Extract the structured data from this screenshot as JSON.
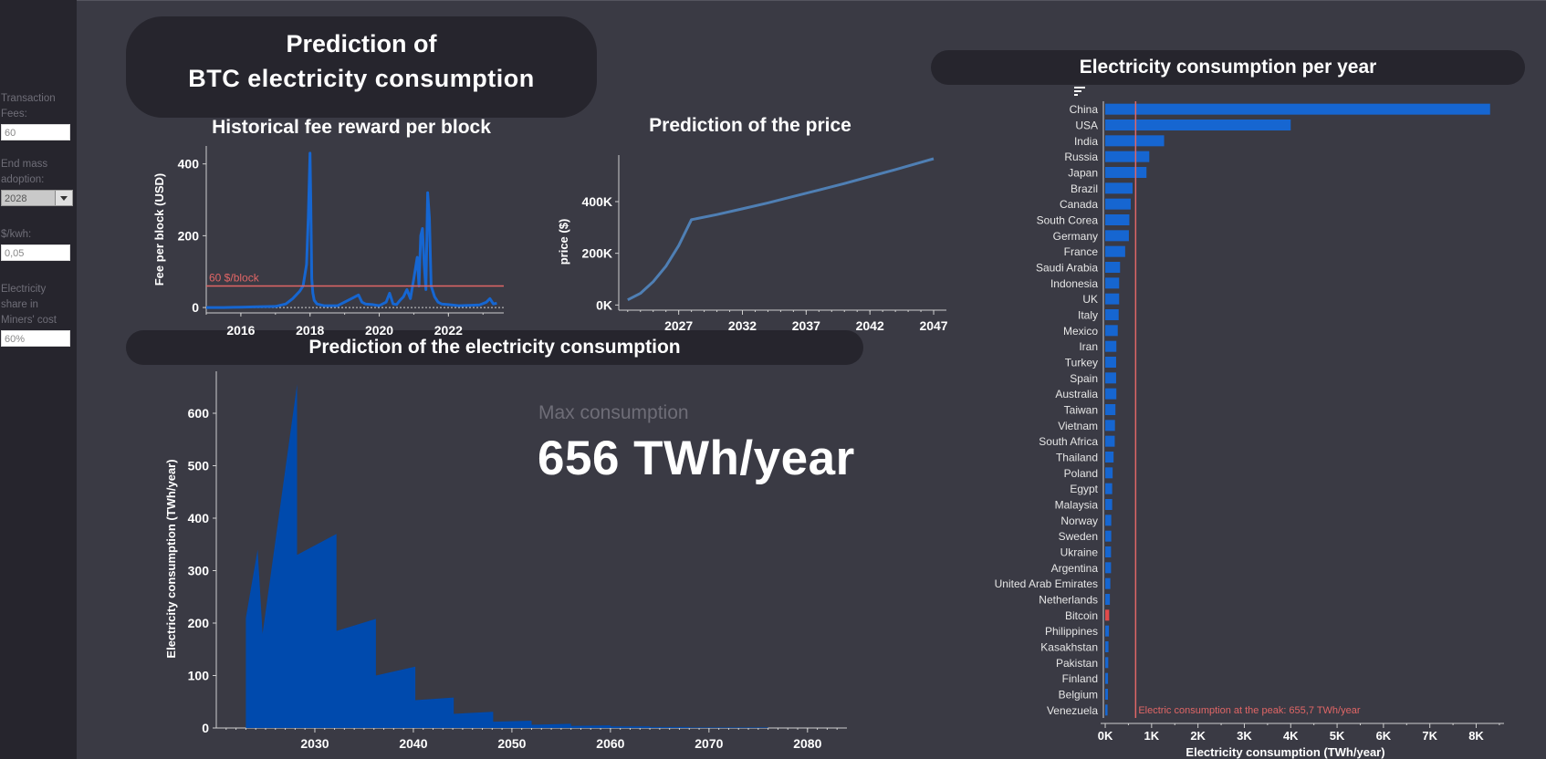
{
  "sidebar": {
    "params": [
      {
        "label": "Transaction Fees:",
        "value": "60",
        "type": "input"
      },
      {
        "label": "End mass adoption:",
        "value": "2028",
        "type": "select"
      },
      {
        "label": "$/kwh:",
        "value": "0,05",
        "type": "input"
      },
      {
        "label": "Electricity share in Miners' cost",
        "value": "60%",
        "type": "input"
      }
    ]
  },
  "title": {
    "line1": "Prediction of",
    "line2": "BTC electricity consumption"
  },
  "headers": {
    "consumption": "Prediction of the electricity consumption",
    "per_year": "Electricity consumption per year"
  },
  "kpi": {
    "label": "Max consumption",
    "value": "656 TWh/year"
  },
  "colors": {
    "background": "#3a3a44",
    "panel": "#26252d",
    "bar_blue": "#1666d1",
    "area_blue": "#004aad",
    "price_line": "#4f7fb4",
    "highlight_red": "#e04b4b",
    "ref_line": "#e06666"
  },
  "chart_data": [
    {
      "id": "fee",
      "type": "line",
      "title": "Historical fee reward per block",
      "ylabel": "Fee per block (USD)",
      "xlabel": "",
      "xlim": [
        2015.0,
        2023.6
      ],
      "ylim": [
        -15,
        450
      ],
      "xticks": [
        2016,
        2018,
        2020,
        2022
      ],
      "yticks": [
        0,
        200,
        400
      ],
      "reference_line": {
        "value": 60,
        "label": "60 $/block"
      },
      "series": [
        {
          "x": [
            2015.0,
            2015.5,
            2016.0,
            2016.5,
            2017.0,
            2017.3,
            2017.5,
            2017.7,
            2017.8,
            2017.9,
            2017.95,
            2018.0,
            2018.02,
            2018.05,
            2018.08,
            2018.12,
            2018.2,
            2018.4,
            2018.8,
            2019.2,
            2019.4,
            2019.5,
            2019.6,
            2019.8,
            2020.0,
            2020.2,
            2020.3,
            2020.4,
            2020.5,
            2020.6,
            2020.7,
            2020.8,
            2020.9,
            2021.0,
            2021.1,
            2021.15,
            2021.2,
            2021.25,
            2021.3,
            2021.35,
            2021.4,
            2021.45,
            2021.5,
            2021.6,
            2021.7,
            2021.8,
            2022.0,
            2022.3,
            2022.6,
            2022.9,
            2023.1,
            2023.2,
            2023.3,
            2023.4
          ],
          "y": [
            0,
            0,
            1,
            2,
            3,
            10,
            25,
            45,
            60,
            120,
            250,
            430,
            300,
            80,
            40,
            20,
            10,
            5,
            5,
            25,
            35,
            15,
            10,
            8,
            5,
            15,
            40,
            10,
            8,
            20,
            30,
            50,
            25,
            80,
            140,
            60,
            200,
            220,
            120,
            50,
            320,
            250,
            60,
            30,
            15,
            10,
            8,
            5,
            6,
            7,
            15,
            25,
            10,
            12
          ]
        }
      ]
    },
    {
      "id": "price",
      "type": "line",
      "title": "Prediction of the price",
      "ylabel": "price ($)",
      "xlabel": "",
      "xlim": [
        2022.3,
        2048.0
      ],
      "ylim": [
        -20000,
        580000
      ],
      "xticks": [
        2027,
        2032,
        2037,
        2042,
        2047
      ],
      "yticks": [
        0,
        200000,
        400000
      ],
      "ytick_labels": [
        "0K",
        "200K",
        "400K"
      ],
      "series": [
        {
          "x": [
            2023.0,
            2024.0,
            2025.0,
            2026.0,
            2027.0,
            2028.0,
            2030.0,
            2032.0,
            2034.0,
            2036.0,
            2038.0,
            2040.0,
            2042.0,
            2044.0,
            2046.0,
            2047.0
          ],
          "y": [
            20000,
            45000,
            90000,
            150000,
            230000,
            330000,
            350000,
            372000,
            395000,
            420000,
            445000,
            470000,
            497000,
            524000,
            552000,
            566000
          ]
        }
      ]
    },
    {
      "id": "consumption",
      "type": "area",
      "title": "",
      "ylabel": "Electricity consumption (TWh/year)",
      "xlabel": "",
      "xlim": [
        2020.0,
        2084.0
      ],
      "ylim": [
        0,
        680
      ],
      "xticks": [
        2030,
        2040,
        2050,
        2060,
        2070,
        2080
      ],
      "yticks": [
        0,
        100,
        200,
        300,
        400,
        500,
        600
      ],
      "series": [
        {
          "x": [
            2023.0,
            2023.0,
            2024.2,
            2024.7,
            2028.2,
            2028.2,
            2032.2,
            2032.2,
            2036.2,
            2036.2,
            2040.2,
            2040.2,
            2044.1,
            2044.1,
            2048.1,
            2048.1,
            2052.0,
            2052.0,
            2056.0,
            2056.0,
            2060.0,
            2060.0,
            2064.0,
            2064.0,
            2068.0,
            2068.0,
            2072.0,
            2072.0,
            2076.0,
            2076.0,
            2080.0,
            2080.0
          ],
          "y": [
            0,
            210,
            340,
            180,
            655,
            330,
            370,
            185,
            208,
            100,
            117,
            53,
            58,
            27,
            31,
            12,
            14,
            6,
            8,
            4,
            5,
            3,
            3,
            2,
            2,
            1,
            1,
            1,
            1,
            0,
            0,
            0
          ]
        }
      ]
    },
    {
      "id": "countries",
      "type": "bar",
      "title": "Electricity consumption per year",
      "xlabel": "Electricity consumption (TWh/year)",
      "ylabel": "",
      "xlim": [
        -40,
        8600
      ],
      "xticks": [
        0,
        1000,
        2000,
        3000,
        4000,
        5000,
        6000,
        7000,
        8000
      ],
      "xtick_labels": [
        "0K",
        "1K",
        "2K",
        "3K",
        "4K",
        "5K",
        "6K",
        "7K",
        "8K"
      ],
      "reference_line": {
        "value": 655.7,
        "label": "Electric consumption at the peak: 655,7 TWh/year"
      },
      "highlight": "Bitcoin",
      "categories": [
        "China",
        "USA",
        "India",
        "Russia",
        "Japan",
        "Brazil",
        "Canada",
        "South Corea",
        "Germany",
        "France",
        "Saudi Arabia",
        "Indonesia",
        "UK",
        "Italy",
        "Mexico",
        "Iran",
        "Turkey",
        "Spain",
        "Australia",
        "Taiwan",
        "Vietnam",
        "South Africa",
        "Thailand",
        "Poland",
        "Egypt",
        "Malaysia",
        "Norway",
        "Sweden",
        "Ukraine",
        "Argentina",
        "United Arab Emirates",
        "Netherlands",
        "Bitcoin",
        "Philippines",
        "Kasakhstan",
        "Pakistan",
        "Finland",
        "Belgium",
        "Venezuela"
      ],
      "values": [
        8300,
        4000,
        1270,
        950,
        890,
        590,
        550,
        520,
        510,
        430,
        320,
        300,
        300,
        290,
        270,
        240,
        235,
        235,
        240,
        220,
        210,
        205,
        180,
        160,
        150,
        150,
        130,
        130,
        125,
        125,
        110,
        100,
        85,
        80,
        70,
        65,
        60,
        58,
        50
      ]
    }
  ]
}
